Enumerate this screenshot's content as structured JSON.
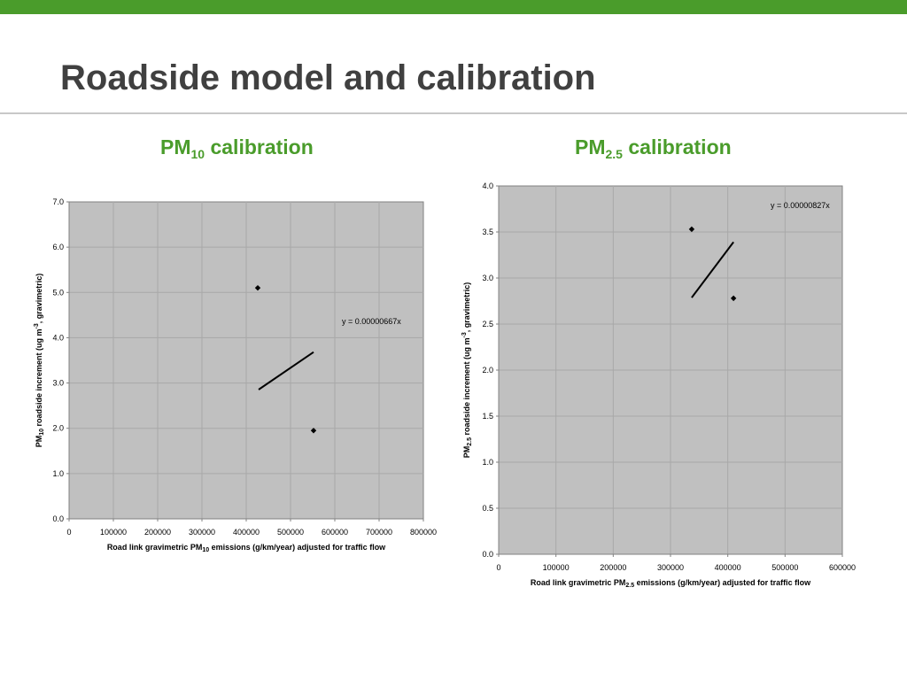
{
  "slide": {
    "title": "Roadside model and calibration",
    "accent_color": "#4a9c2b",
    "title_color": "#404040",
    "plot_bg_color": "#c0c0c0"
  },
  "chart_data": [
    {
      "type": "scatter",
      "heading": {
        "prefix": "PM",
        "sub": "10",
        "suffix": " calibration"
      },
      "xlabel": {
        "prefix": "Road link gravimetric PM",
        "sub": "10",
        "suffix": " emissions (g/km/year) adjusted for traffic flow"
      },
      "ylabel": {
        "prefix": "PM",
        "sub": "10",
        "mid": " roadside increment (ug m",
        "sup": "-3",
        "suffix": ", gravimetric)"
      },
      "xlim": [
        0,
        800000
      ],
      "ylim": [
        0,
        7
      ],
      "x_ticks": [
        0,
        100000,
        200000,
        300000,
        400000,
        500000,
        600000,
        700000,
        800000
      ],
      "x_tick_labels": [
        "0",
        "100000",
        "200000",
        "300000",
        "400000",
        "500000",
        "600000",
        "700000",
        "800000"
      ],
      "y_ticks": [
        0,
        1,
        2,
        3,
        4,
        5,
        6,
        7
      ],
      "y_tick_labels": [
        "0.0",
        "1.0",
        "2.0",
        "3.0",
        "4.0",
        "5.0",
        "6.0",
        "7.0"
      ],
      "grid": true,
      "points": [
        {
          "x": 426000,
          "y": 5.1
        },
        {
          "x": 552000,
          "y": 1.95
        }
      ],
      "trendline": {
        "slope": 6.67e-06,
        "x_range": [
          428000,
          552000
        ],
        "equation": "y = 0.00000667x"
      }
    },
    {
      "type": "scatter",
      "heading": {
        "prefix": "PM",
        "sub": "2.5",
        "suffix": " calibration"
      },
      "xlabel": {
        "prefix": "Road link gravimetric PM",
        "sub": "2.5",
        "suffix": " emissions (g/km/year) adjusted for traffic flow"
      },
      "ylabel": {
        "prefix": "PM",
        "sub": "2.5",
        "mid": " roadside increment (ug m",
        "sup": "-3",
        "suffix": ", gravimetric)"
      },
      "xlim": [
        0,
        600000
      ],
      "ylim": [
        0,
        4
      ],
      "x_ticks": [
        0,
        100000,
        200000,
        300000,
        400000,
        500000,
        600000
      ],
      "x_tick_labels": [
        "0",
        "100000",
        "200000",
        "300000",
        "400000",
        "500000",
        "600000"
      ],
      "y_ticks": [
        0,
        0.5,
        1,
        1.5,
        2,
        2.5,
        3,
        3.5,
        4
      ],
      "y_tick_labels": [
        "0.0",
        "0.5",
        "1.0",
        "1.5",
        "2.0",
        "2.5",
        "3.0",
        "3.5",
        "4.0"
      ],
      "grid": true,
      "points": [
        {
          "x": 337000,
          "y": 3.53
        },
        {
          "x": 410000,
          "y": 2.78
        }
      ],
      "trendline": {
        "slope": 8.27e-06,
        "x_range": [
          337000,
          410000
        ],
        "equation": "y = 0.00000827x"
      }
    }
  ]
}
